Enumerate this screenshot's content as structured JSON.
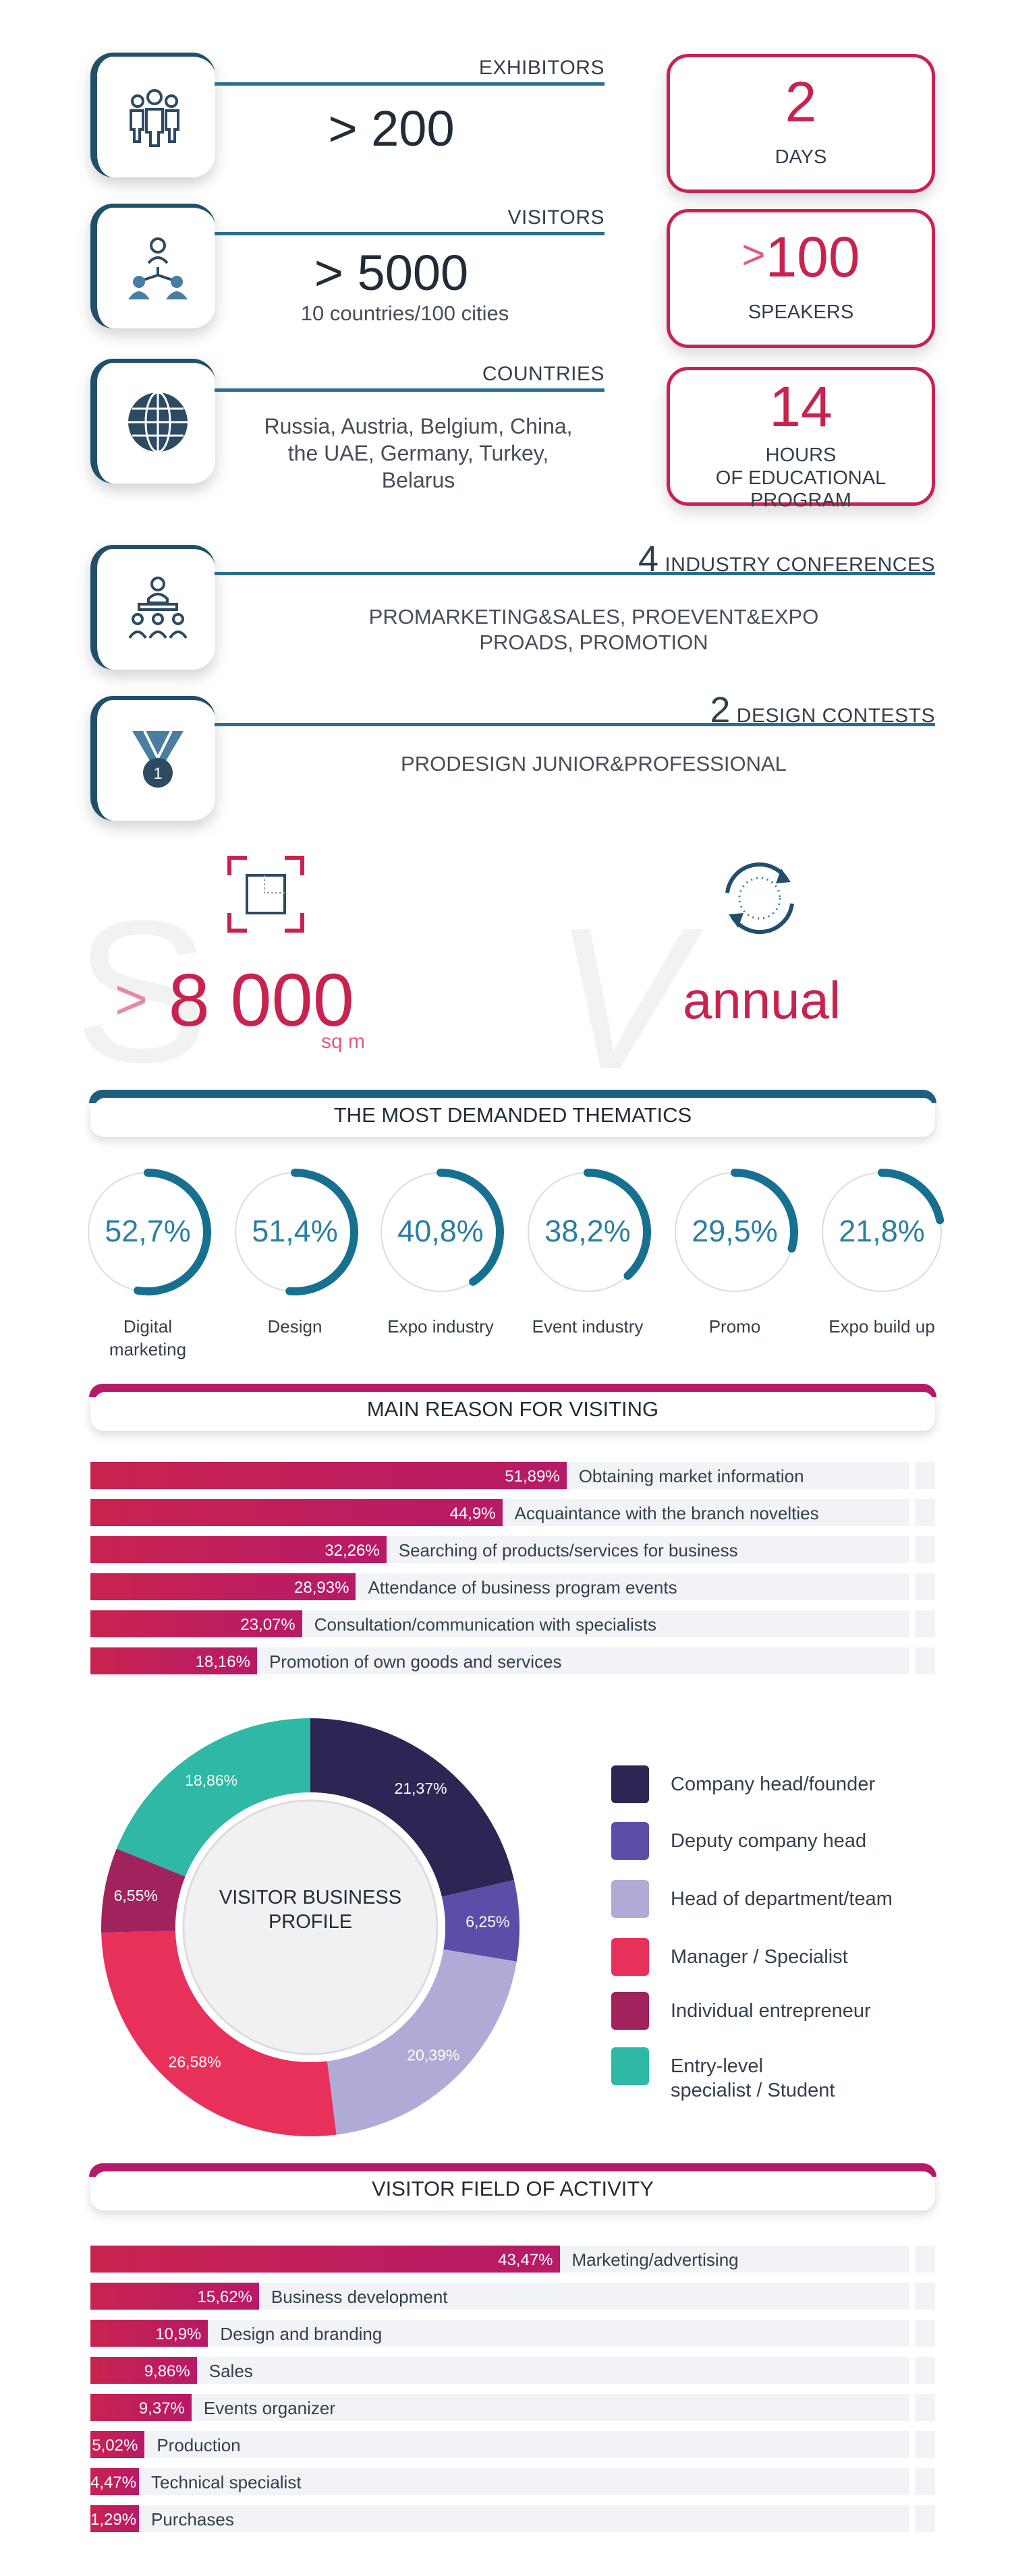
{
  "colors": {
    "teal": "#1f5f7e",
    "crimson": "#c8234f",
    "magenta": "#b71a68",
    "circle_accent": "#17708f"
  },
  "exhibitors": {
    "label": "EXHIBITORS",
    "value": "> 200",
    "icon": "people-group-icon"
  },
  "visitors": {
    "label": "VISITORS",
    "value": "> 5000",
    "sub": "10 countries/100 cities",
    "icon": "people-network-icon"
  },
  "countries": {
    "label": "COUNTRIES",
    "list": "Russia, Austria, Belgium, China, the UAE, Germany, Turkey, Belarus",
    "icon": "globe-icon"
  },
  "cards": [
    {
      "num": "2",
      "label": "DAYS"
    },
    {
      "prefix": ">",
      "num": "100",
      "label": "SPEAKERS"
    },
    {
      "num": "14",
      "label_line1": "HOURS",
      "label_line2": "OF EDUCATIONAL PROGRAM"
    }
  ],
  "conferences": {
    "num": "4",
    "label": "INDUSTRY CONFERENCES",
    "line1": "PROMARKETING&SALES, PROEVENT&EXPO",
    "line2": "PROADS, PROMOTION",
    "icon": "audience-icon"
  },
  "contests": {
    "num": "2",
    "label": "DESIGN CONTESTS",
    "line1": "PRODESIGN  JUNIOR&PROFESSIONAL",
    "icon": "medal-icon"
  },
  "area": {
    "prefix": ">",
    "value": "8 000",
    "unit": "sq m",
    "icon": "area-frame-icon",
    "bg_letter": "S"
  },
  "frequency": {
    "value": "annual",
    "icon": "cycle-arrows-icon",
    "bg_letter": "V"
  },
  "thematics": {
    "title": "THE MOST DEMANDED THEMATICS",
    "items": [
      {
        "pct": "52,7%",
        "value": 52.7,
        "label_line1": "Digital",
        "label_line2": "marketing"
      },
      {
        "pct": "51,4%",
        "value": 51.4,
        "label_line1": "Design",
        "label_line2": ""
      },
      {
        "pct": "40,8%",
        "value": 40.8,
        "label_line1": "Expo industry",
        "label_line2": ""
      },
      {
        "pct": "38,2%",
        "value": 38.2,
        "label_line1": "Event industry",
        "label_line2": ""
      },
      {
        "pct": "29,5%",
        "value": 29.5,
        "label_line1": "Promo",
        "label_line2": ""
      },
      {
        "pct": "21,8%",
        "value": 21.8,
        "label_line1": "Expo build up",
        "label_line2": ""
      }
    ]
  },
  "reasons": {
    "title": "MAIN REASON FOR VISITING",
    "rows": [
      {
        "value": 51.89,
        "text": "51,89%",
        "label": "Obtaining market information"
      },
      {
        "value": 44.9,
        "text": "44,9%",
        "label": "Acquaintance with the branch novelties"
      },
      {
        "value": 32.26,
        "text": "32,26%",
        "label": "Searching of products/services for business"
      },
      {
        "value": 28.93,
        "text": "28,93%",
        "label": "Attendance of business program events"
      },
      {
        "value": 23.07,
        "text": "23,07%",
        "label": "Consultation/communication with specialists"
      },
      {
        "value": 18.16,
        "text": "18,16%",
        "label": "Promotion of own goods and services"
      }
    ]
  },
  "chart_data": {
    "type": "pie",
    "title": "VISITOR BUSINESS PROFILE",
    "slices": [
      {
        "label": "Company head/founder",
        "value": 21.37,
        "text": "21,37%",
        "color": "#2d2655"
      },
      {
        "label": "Deputy company head",
        "value": 6.25,
        "text": "6,25%",
        "color": "#5b4ea8"
      },
      {
        "label": "Head of department/team",
        "value": 20.39,
        "text": "20,39%",
        "color": "#b0aad6"
      },
      {
        "label": "Manager / Specialist",
        "value": 26.58,
        "text": "26,58%",
        "color": "#e8315a"
      },
      {
        "label": "Individual entrepreneur",
        "value": 6.55,
        "text": "6,55%",
        "color": "#a0235e"
      },
      {
        "label": "Entry-level specialist / Student",
        "value": 18.86,
        "text": "18,86%",
        "color": "#2fb8a5"
      }
    ]
  },
  "profile": {
    "title_line1": "VISITOR BUSINESS",
    "title_line2": "PROFILE",
    "legend": [
      {
        "line1": "Company head/founder",
        "line2": ""
      },
      {
        "line1": "Deputy company head",
        "line2": ""
      },
      {
        "line1": "Head of department/team",
        "line2": ""
      },
      {
        "line1": "Manager / Specialist",
        "line2": ""
      },
      {
        "line1": "Individual entrepreneur",
        "line2": ""
      },
      {
        "line1": "Entry-level",
        "line2": "specialist / Student"
      }
    ]
  },
  "activity": {
    "title": "VISITOR FIELD OF ACTIVITY",
    "rows": [
      {
        "value": 43.47,
        "text": "43,47%",
        "label": "Marketing/advertising"
      },
      {
        "value": 15.62,
        "text": "15,62%",
        "label": "Business development"
      },
      {
        "value": 10.9,
        "text": "10,9%",
        "label": "Design and branding"
      },
      {
        "value": 9.86,
        "text": "9,86%",
        "label": "Sales"
      },
      {
        "value": 9.37,
        "text": "9,37%",
        "label": "Events organizer"
      },
      {
        "value": 5.02,
        "text": "5,02%",
        "label": "Production"
      },
      {
        "value": 4.47,
        "text": "4,47%",
        "label": "Technical specialist"
      },
      {
        "value": 1.29,
        "text": "1,29%",
        "label": "Purchases"
      }
    ]
  }
}
